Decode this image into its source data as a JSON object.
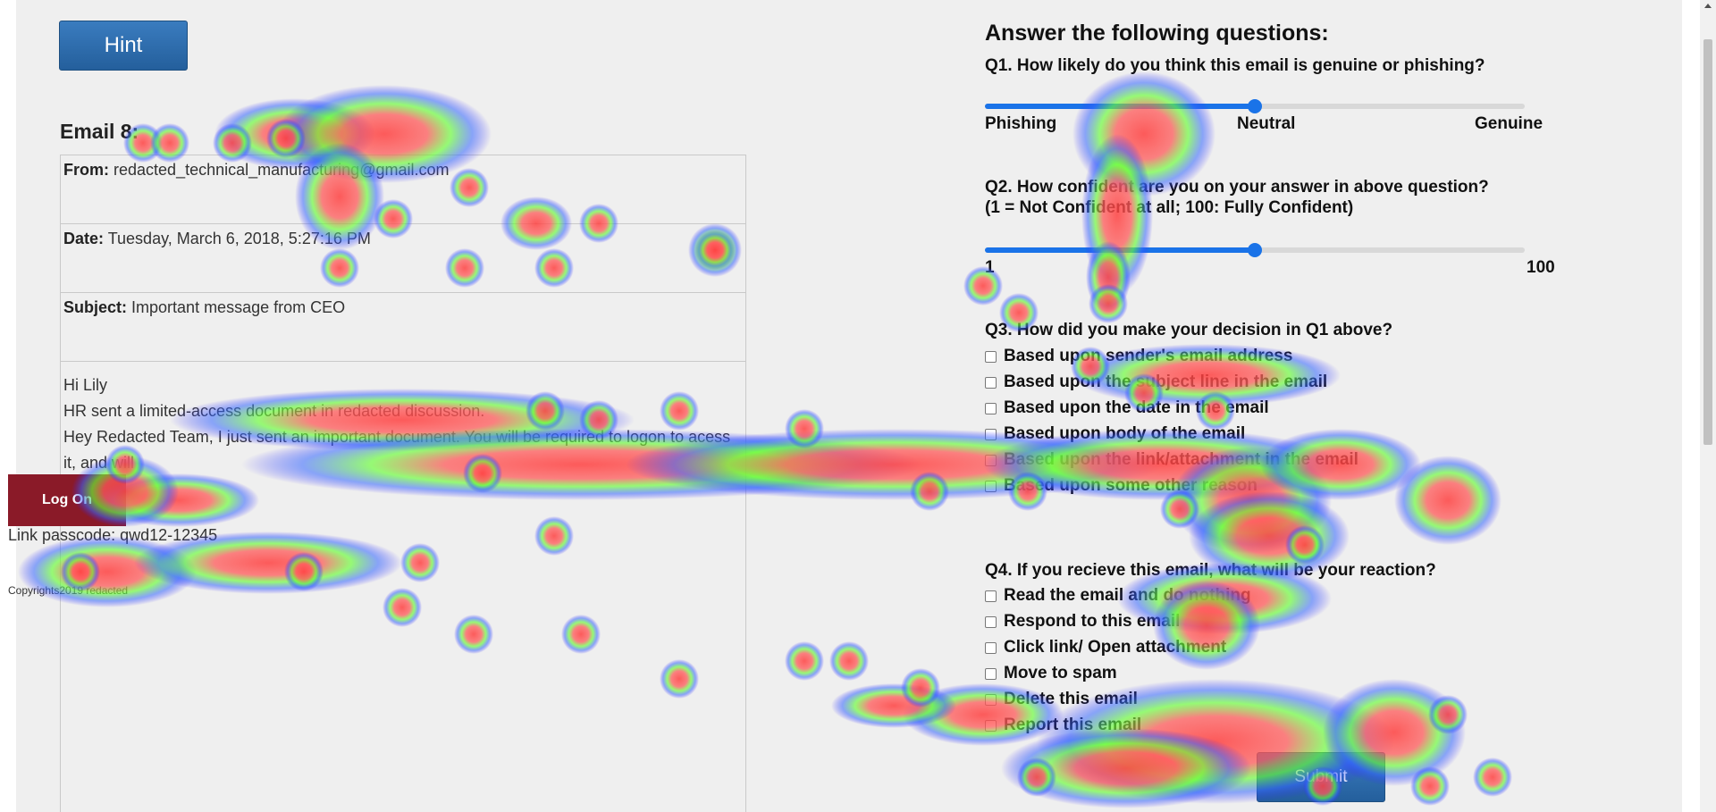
{
  "hint_label": "Hint",
  "email": {
    "title": "Email 8:",
    "from_label": "From:",
    "from_value": "redacted_technical_manufacturing@gmail.com",
    "date_label": "Date:",
    "date_value": "Tuesday, March 6, 2018, 5:27:16 PM",
    "subject_label": "Subject:",
    "subject_value": "Important message from CEO",
    "greeting": "Hi Lily",
    "line1": "HR sent a limited-access document in redacted discussion.",
    "line2": "Hey Redacted Team, I just sent an important document. You will be required to logon to acess it, and will",
    "logon_label": "Log On",
    "passcode": "Link passcode: qwd12-12345",
    "copyright": "Copyrights2019 redacted"
  },
  "questions": {
    "heading": "Answer the following questions:",
    "q1": {
      "text": "Q1. How likely do you think this email is genuine or phishing?",
      "left": "Phishing",
      "middle": "Neutral",
      "right": "Genuine",
      "value_fraction": 0.5
    },
    "q2": {
      "text_line1": "Q2. How confident are you on your answer in above question?",
      "text_line2": "(1 = Not Confident at all; 100: Fully Confident)",
      "min": "1",
      "max": "100",
      "value_fraction": 0.5
    },
    "q3": {
      "text": "Q3. How did you make your decision in Q1 above?",
      "options": [
        "Based upon sender's email address",
        "Based upon the subject line in the email",
        "Based upon the date in the email",
        "Based upon body of the email",
        "Based upon the link/attachment in the email",
        "Based upon some other reason"
      ]
    },
    "q4": {
      "text": "Q4. If you recieve this email, what will be your reaction?",
      "options": [
        "Read the email and do nothing",
        "Respond to this email",
        "Click link/ Open attachment",
        "Move to spam",
        "Delete this email",
        "Report this email"
      ]
    },
    "submit_label": "Submit"
  },
  "colors": {
    "button": "#2a6aab",
    "slider": "#1a73e8",
    "logon": "#8a1a28",
    "heat_hot": "#ff5050",
    "heat_mid": "#55ff55",
    "heat_cool": "#2222ff"
  }
}
